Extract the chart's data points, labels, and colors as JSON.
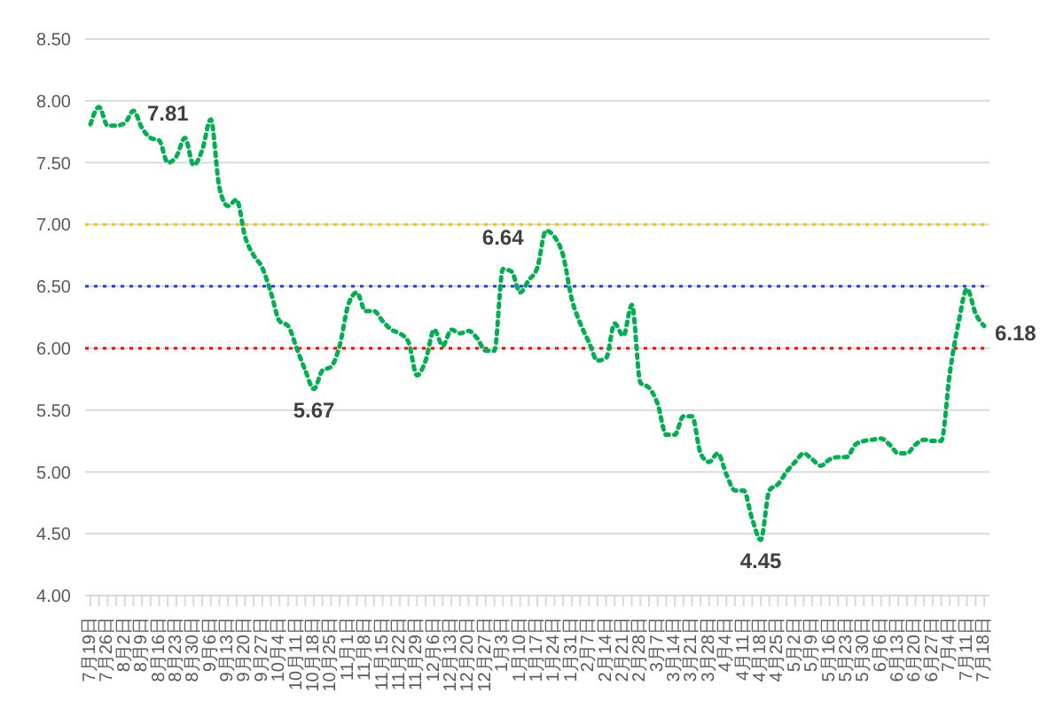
{
  "chart_data": {
    "type": "line",
    "categories": [
      "7月19日",
      null,
      "7月26日",
      null,
      "8月2日",
      null,
      "8月9日",
      null,
      "8月16日",
      null,
      "8月23日",
      null,
      "8月30日",
      null,
      "9月6日",
      null,
      "9月13日",
      null,
      "9月20日",
      null,
      "9月27日",
      null,
      "10月4日",
      null,
      "10月11日",
      null,
      "10月18日",
      null,
      "10月25日",
      null,
      "11月1日",
      null,
      "11月8日",
      null,
      "11月15日",
      null,
      "11月22日",
      null,
      "11月29日",
      null,
      "12月6日",
      null,
      "12月13日",
      null,
      "12月20日",
      null,
      "12月27日",
      null,
      "1月3日",
      null,
      "1月10日",
      null,
      "1月17日",
      null,
      "1月24日",
      null,
      "1月31日",
      null,
      "2月7日",
      null,
      "2月14日",
      null,
      "2月21日",
      null,
      "2月28日",
      null,
      "3月7日",
      null,
      "3月14日",
      null,
      "3月21日",
      null,
      "3月28日",
      null,
      "4月4日",
      null,
      "4月11日",
      null,
      "4月18日",
      null,
      "4月25日",
      null,
      "5月2日",
      null,
      "5月9日",
      null,
      "5月16日",
      null,
      "5月23日",
      null,
      "5月30日",
      null,
      "6月6日",
      null,
      "6月13日",
      null,
      "6月20日",
      null,
      "6月27日",
      null,
      "7月4日",
      null,
      "7月11日",
      null,
      "7月18日"
    ],
    "series": [
      {
        "color": "#00b050",
        "values": [
          7.81,
          7.95,
          7.8,
          7.8,
          7.82,
          7.92,
          7.78,
          7.7,
          7.68,
          7.5,
          7.55,
          7.7,
          7.48,
          7.6,
          7.85,
          7.3,
          7.15,
          7.2,
          6.9,
          6.75,
          6.65,
          6.45,
          6.22,
          6.18,
          6.0,
          5.82,
          5.67,
          5.82,
          5.85,
          6.02,
          6.35,
          6.45,
          6.3,
          6.3,
          6.22,
          6.15,
          6.12,
          6.05,
          5.78,
          5.9,
          6.15,
          6.02,
          6.15,
          6.12,
          6.14,
          6.08,
          5.98,
          5.98,
          6.64,
          6.62,
          6.45,
          6.55,
          6.65,
          6.95,
          6.9,
          6.75,
          6.4,
          6.2,
          6.05,
          5.9,
          5.92,
          6.2,
          6.1,
          6.35,
          5.72,
          5.68,
          5.55,
          5.3,
          5.3,
          5.45,
          5.45,
          5.15,
          5.08,
          5.15,
          4.98,
          4.85,
          4.85,
          4.62,
          4.45,
          4.85,
          4.9,
          5.0,
          5.08,
          5.15,
          5.1,
          5.05,
          5.1,
          5.12,
          5.12,
          5.22,
          5.25,
          5.26,
          5.27,
          5.22,
          5.15,
          5.15,
          5.22,
          5.26,
          5.25,
          5.25,
          5.8,
          6.2,
          6.48,
          6.28,
          6.18
        ]
      }
    ],
    "ylim": [
      4,
      8.5
    ],
    "yticks": [
      {
        "value": 4,
        "label": "4.00"
      },
      {
        "value": 4.5,
        "label": "4.50"
      },
      {
        "value": 5,
        "label": "5.00"
      },
      {
        "value": 5.5,
        "label": "5.50"
      },
      {
        "value": 6,
        "label": "6.00"
      },
      {
        "value": 6.5,
        "label": "6.50"
      },
      {
        "value": 7,
        "label": "7.00"
      },
      {
        "value": 7.5,
        "label": "7.50"
      },
      {
        "value": 8,
        "label": "8.00"
      },
      {
        "value": 8.5,
        "label": "8.50"
      }
    ],
    "grid": "y",
    "legend": false,
    "marker": "none",
    "line_style": "dotted",
    "ref_lines": [
      {
        "axis": "y",
        "value": 7,
        "color": "#ffc000",
        "line_style": "dotted"
      },
      {
        "axis": "y",
        "value": 6.5,
        "color": "#1f3fd6",
        "line_style": "dotted"
      },
      {
        "axis": "y",
        "value": 6,
        "color": "#ff0000",
        "line_style": "dotted"
      }
    ],
    "annotations": [
      {
        "text": "7.81",
        "x": "7月19日",
        "y": 7.81
      },
      {
        "text": "5.67",
        "x": "10月18日",
        "y": 5.67
      },
      {
        "text": "6.64",
        "x": "1月3日",
        "y": 6.64
      },
      {
        "text": "4.45",
        "x": "4月18日",
        "y": 4.45
      },
      {
        "text": "6.18",
        "x": "7月18日",
        "y": 6.18
      }
    ]
  }
}
